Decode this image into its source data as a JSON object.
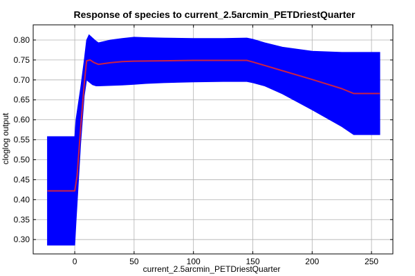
{
  "chart_data": {
    "type": "area",
    "title": "Response of species to current_2.5arcmin_PETDriestQuarter",
    "xlabel": "current_2.5arcmin_PETDriestQuarter",
    "ylabel": "cloglog output",
    "xlim": [
      -35,
      268
    ],
    "ylim": [
      0.264,
      0.838
    ],
    "xticks": [
      0,
      50,
      100,
      150,
      200,
      250
    ],
    "yticks": [
      0.3,
      0.35,
      0.4,
      0.45,
      0.5,
      0.55,
      0.6,
      0.65,
      0.7,
      0.75,
      0.8
    ],
    "grid": true,
    "legend": "none",
    "colors": {
      "band": "#0000ff",
      "line": "#cc2244",
      "grid": "#b0b0b0",
      "axes": "#000000"
    },
    "series": [
      {
        "kind": "band",
        "x": [
          -23,
          0,
          1,
          5,
          8,
          10,
          12,
          15,
          18,
          20,
          30,
          40,
          50,
          60,
          75,
          100,
          125,
          145,
          150,
          160,
          175,
          200,
          225,
          235,
          257
        ],
        "lower": [
          0.286,
          0.286,
          0.34,
          0.54,
          0.66,
          0.7,
          0.695,
          0.688,
          0.685,
          0.685,
          0.686,
          0.687,
          0.689,
          0.691,
          0.693,
          0.695,
          0.696,
          0.696,
          0.693,
          0.685,
          0.665,
          0.625,
          0.583,
          0.563,
          0.563
        ],
        "upper": [
          0.558,
          0.558,
          0.6,
          0.68,
          0.75,
          0.8,
          0.813,
          0.805,
          0.797,
          0.793,
          0.8,
          0.804,
          0.807,
          0.806,
          0.805,
          0.804,
          0.804,
          0.805,
          0.802,
          0.793,
          0.782,
          0.772,
          0.769,
          0.769,
          0.769
        ]
      },
      {
        "kind": "line",
        "x": [
          -23,
          0,
          2,
          5,
          8,
          10,
          13,
          16,
          20,
          30,
          40,
          50,
          75,
          100,
          125,
          145,
          150,
          175,
          200,
          225,
          235,
          257
        ],
        "y": [
          0.422,
          0.422,
          0.46,
          0.58,
          0.69,
          0.748,
          0.75,
          0.744,
          0.739,
          0.743,
          0.746,
          0.747,
          0.748,
          0.749,
          0.749,
          0.749,
          0.745,
          0.723,
          0.701,
          0.678,
          0.666,
          0.666
        ]
      }
    ]
  }
}
